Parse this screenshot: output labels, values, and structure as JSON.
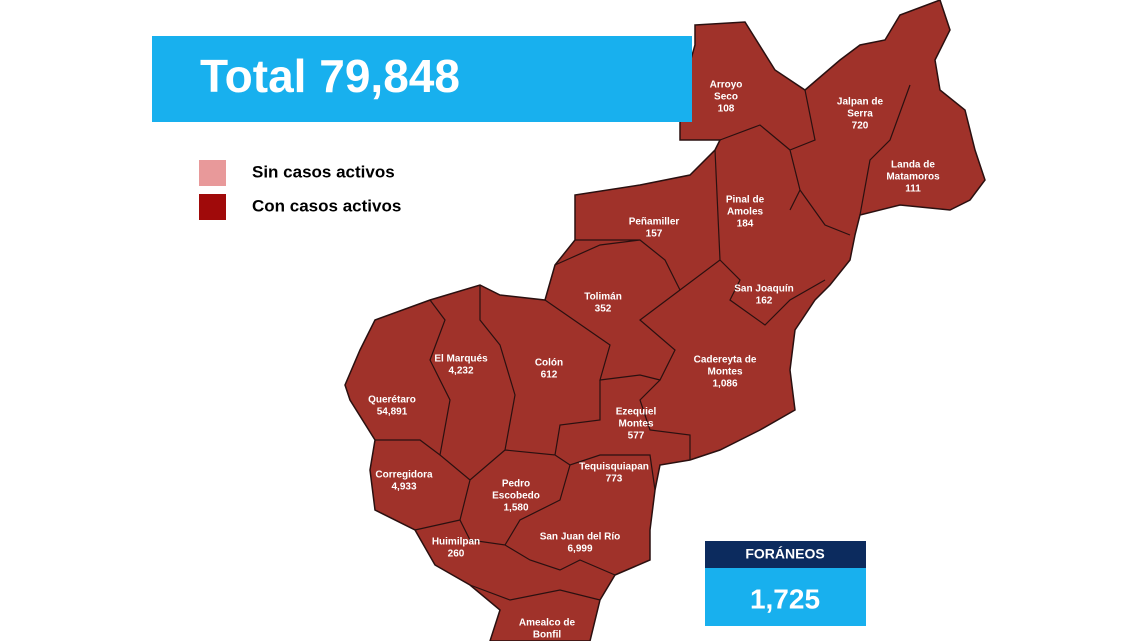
{
  "header": {
    "title": "Total 79,848"
  },
  "legend": {
    "items": [
      {
        "label": "Sin casos activos",
        "color": "#e8999a"
      },
      {
        "label": "Con casos activos",
        "color": "#a00a0a"
      }
    ]
  },
  "map": {
    "municipalities": [
      {
        "name_lines": [
          "Arroyo",
          "Seco"
        ],
        "cases": "108"
      },
      {
        "name_lines": [
          "Jalpan de",
          "Serra"
        ],
        "cases": "720"
      },
      {
        "name_lines": [
          "Landa de",
          "Matamoros"
        ],
        "cases": "111"
      },
      {
        "name_lines": [
          "Pinal de",
          "Amoles"
        ],
        "cases": "184"
      },
      {
        "name_lines": [
          "Peñamiller"
        ],
        "cases": "157"
      },
      {
        "name_lines": [
          "San Joaquín"
        ],
        "cases": "162"
      },
      {
        "name_lines": [
          "Tolimán"
        ],
        "cases": "352"
      },
      {
        "name_lines": [
          "Cadereyta de",
          "Montes"
        ],
        "cases": "1,086"
      },
      {
        "name_lines": [
          "El  Marqués"
        ],
        "cases": "4,232"
      },
      {
        "name_lines": [
          "Colón"
        ],
        "cases": "612"
      },
      {
        "name_lines": [
          "Querétaro"
        ],
        "cases": "54,891"
      },
      {
        "name_lines": [
          "Ezequiel",
          "Montes"
        ],
        "cases": "577"
      },
      {
        "name_lines": [
          "Corregidora"
        ],
        "cases": "4,933"
      },
      {
        "name_lines": [
          "Tequisquiapan"
        ],
        "cases": "773"
      },
      {
        "name_lines": [
          "Pedro",
          "Escobedo"
        ],
        "cases": "1,580"
      },
      {
        "name_lines": [
          "Huimilpan"
        ],
        "cases": "260"
      },
      {
        "name_lines": [
          "San Juan del Río"
        ],
        "cases": "6,999"
      },
      {
        "name_lines": [
          "Amealco de",
          "Bonfil"
        ],
        "cases": null
      }
    ]
  },
  "foraneos": {
    "title": "FORÁNEOS",
    "value": "1,725"
  }
}
